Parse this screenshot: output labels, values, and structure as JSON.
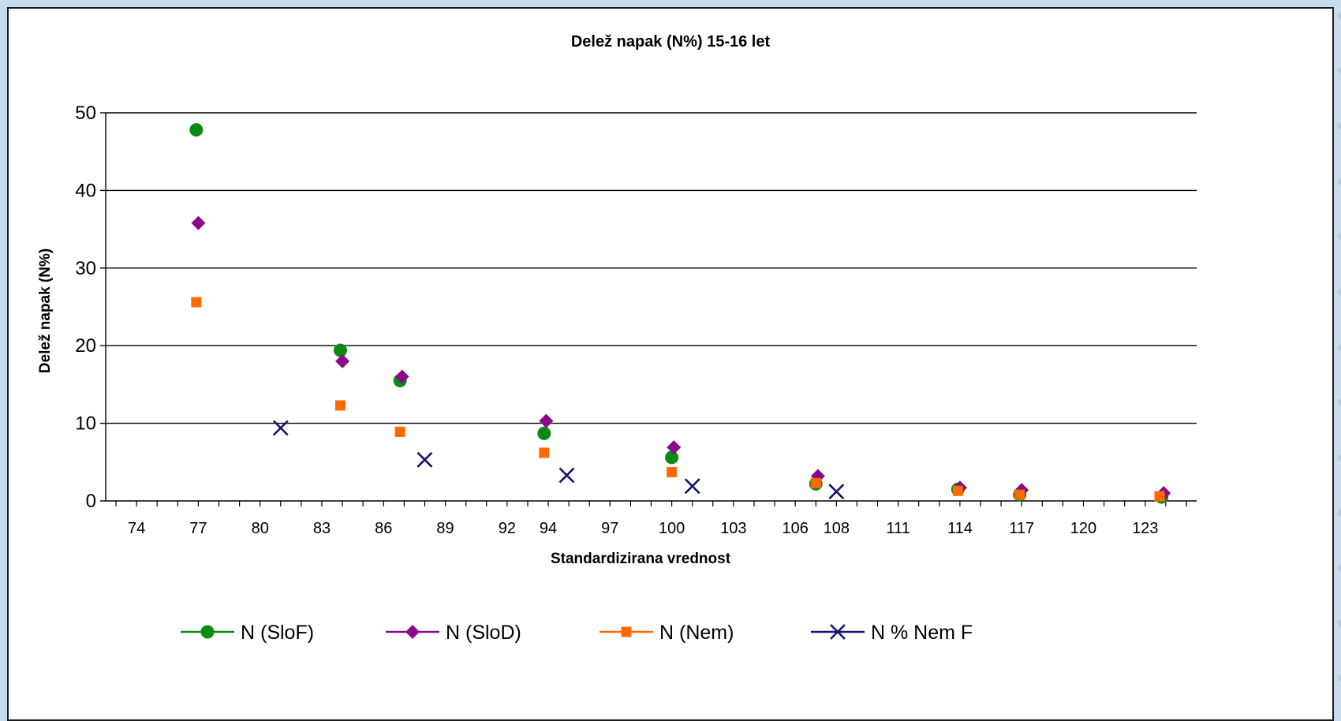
{
  "chart_data": {
    "type": "scatter",
    "title": "Delež napak (N%) 15-16 let",
    "xlabel": "Standardizirana vrednost",
    "ylabel": "Delež napak (N%)",
    "xlim": [
      72.5,
      125.5
    ],
    "ylim": [
      0,
      50
    ],
    "xticks": [
      74,
      77,
      80,
      83,
      86,
      89,
      92,
      94,
      97,
      100,
      103,
      106,
      108,
      111,
      114,
      117,
      120,
      123
    ],
    "yticks": [
      0,
      10,
      20,
      30,
      40,
      50
    ],
    "grid": "horizontal",
    "legend_position": "bottom",
    "series": [
      {
        "name": "N (SloF)",
        "marker": "circle",
        "color": "#0b8a14",
        "points": [
          [
            76.9,
            47.8
          ],
          [
            83.9,
            19.4
          ],
          [
            86.8,
            15.5
          ],
          [
            93.8,
            8.7
          ],
          [
            100.0,
            5.6
          ],
          [
            107.0,
            2.2
          ],
          [
            113.9,
            1.5
          ],
          [
            116.9,
            0.8
          ],
          [
            123.8,
            0.5
          ]
        ]
      },
      {
        "name": "N (SloD)",
        "marker": "diamond",
        "color": "#8b0a8b",
        "points": [
          [
            77.0,
            35.8
          ],
          [
            84.0,
            18.0
          ],
          [
            86.9,
            16.0
          ],
          [
            93.9,
            10.3
          ],
          [
            100.1,
            6.9
          ],
          [
            107.1,
            3.2
          ],
          [
            114.0,
            1.7
          ],
          [
            117.0,
            1.4
          ],
          [
            123.9,
            1.0
          ]
        ]
      },
      {
        "name": "N (Nem)",
        "marker": "square",
        "color": "#ff6a00",
        "points": [
          [
            76.9,
            25.6
          ],
          [
            83.9,
            12.3
          ],
          [
            86.8,
            8.9
          ],
          [
            93.8,
            6.2
          ],
          [
            100.0,
            3.7
          ],
          [
            107.0,
            2.3
          ],
          [
            113.9,
            1.3
          ],
          [
            116.9,
            0.8
          ],
          [
            123.7,
            0.6
          ]
        ]
      },
      {
        "name": "N % Nem F",
        "marker": "x",
        "color": "#14146e",
        "points": [
          [
            81.0,
            9.4
          ],
          [
            88.0,
            5.3
          ],
          [
            94.9,
            3.3
          ],
          [
            101.0,
            1.9
          ],
          [
            108.0,
            1.2
          ]
        ]
      }
    ]
  }
}
